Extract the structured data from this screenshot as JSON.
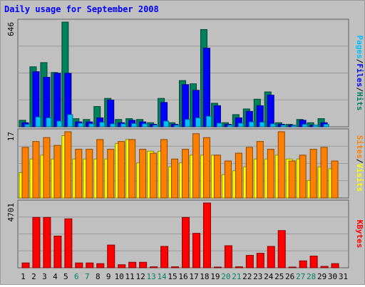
{
  "chart_data": {
    "type": "bar",
    "title": "Daily usage for September 2008",
    "days": [
      "1",
      "2",
      "3",
      "4",
      "5",
      "6",
      "7",
      "8",
      "9",
      "10",
      "11",
      "12",
      "13",
      "14",
      "15",
      "16",
      "17",
      "18",
      "19",
      "20",
      "21",
      "22",
      "23",
      "24",
      "25",
      "26",
      "27",
      "28",
      "29",
      "30",
      "31"
    ],
    "weekend_days": [
      "6",
      "7",
      "13",
      "14",
      "20",
      "21",
      "27",
      "28"
    ],
    "panels": [
      {
        "id": "top",
        "max_label": "646",
        "ymax": 646,
        "series": [
          {
            "name": "Hits",
            "color": "#00805c",
            "values": [
              40,
              370,
              396,
              335,
              646,
              50,
              45,
              125,
              175,
              45,
              50,
              45,
              25,
              175,
              25,
              285,
              265,
              600,
              145,
              25,
              75,
              110,
              170,
              215,
              25,
              15,
              45,
              25,
              50,
              0,
              0
            ]
          },
          {
            "name": "Files",
            "color": "#0000ff",
            "values": [
              25,
              340,
              305,
              330,
              330,
              30,
              30,
              55,
              165,
              25,
              40,
              30,
              15,
              150,
              15,
              260,
              225,
              485,
              130,
              15,
              55,
              95,
              130,
              195,
              15,
              10,
              40,
              10,
              25,
              0,
              0
            ]
          },
          {
            "name": "Pages",
            "color": "#00c0ff",
            "values": [
              14,
              60,
              55,
              35,
              75,
              22,
              18,
              28,
              18,
              18,
              20,
              18,
              10,
              35,
              10,
              45,
              55,
              65,
              22,
              10,
              22,
              30,
              28,
              18,
              10,
              8,
              15,
              10,
              15,
              0,
              0
            ]
          }
        ],
        "right_label": [
          "Pages",
          "Files",
          "Hits"
        ]
      },
      {
        "id": "middle",
        "max_label": "17",
        "ymax": 17,
        "series": [
          {
            "name": "Visits",
            "color": "#ffff00",
            "values": [
              6.5,
              10,
              11,
              10,
              16,
              10,
              10,
              10,
              10,
              14,
              15,
              9,
              12,
              12,
              8,
              9,
              11,
              11,
              11,
              6,
              7,
              8,
              10,
              10,
              11,
              10,
              10,
              4.5,
              8,
              7.5,
              0
            ]
          },
          {
            "name": "Sites",
            "color": "#ff8000",
            "values": [
              13,
              14.5,
              15.5,
              13.5,
              17,
              12.5,
              12.5,
              15,
              12.5,
              14.5,
              15,
              12.5,
              11.5,
              15,
              10,
              12.5,
              16.5,
              15.5,
              11,
              9.5,
              11.5,
              13,
              14.5,
              12.5,
              17,
              9.5,
              11,
              12.5,
              13,
              9.5,
              0
            ]
          }
        ],
        "right_label": [
          "Sites",
          "Visits"
        ]
      },
      {
        "id": "bottom",
        "max_label": "4701",
        "ymax": 4701,
        "series": [
          {
            "name": "KBytes",
            "color": "#ff0000",
            "values": [
              350,
              3650,
              3650,
              2300,
              3550,
              350,
              350,
              300,
              1650,
              220,
              400,
              400,
              70,
              1550,
              70,
              3650,
              2500,
              4701,
              45,
              1600,
              70,
              900,
              1050,
              1550,
              2700,
              50,
              500,
              850,
              100,
              300,
              0
            ]
          }
        ],
        "right_label": [
          "KBytes"
        ]
      }
    ],
    "colors": {
      "background": "#c0c0c0",
      "plot": "#c0c0c0",
      "grid": "#9a9a9a",
      "title": "#0000ff",
      "weekday_label": "#000000",
      "weekend_label": "#00805c",
      "separator": "#606060"
    }
  }
}
